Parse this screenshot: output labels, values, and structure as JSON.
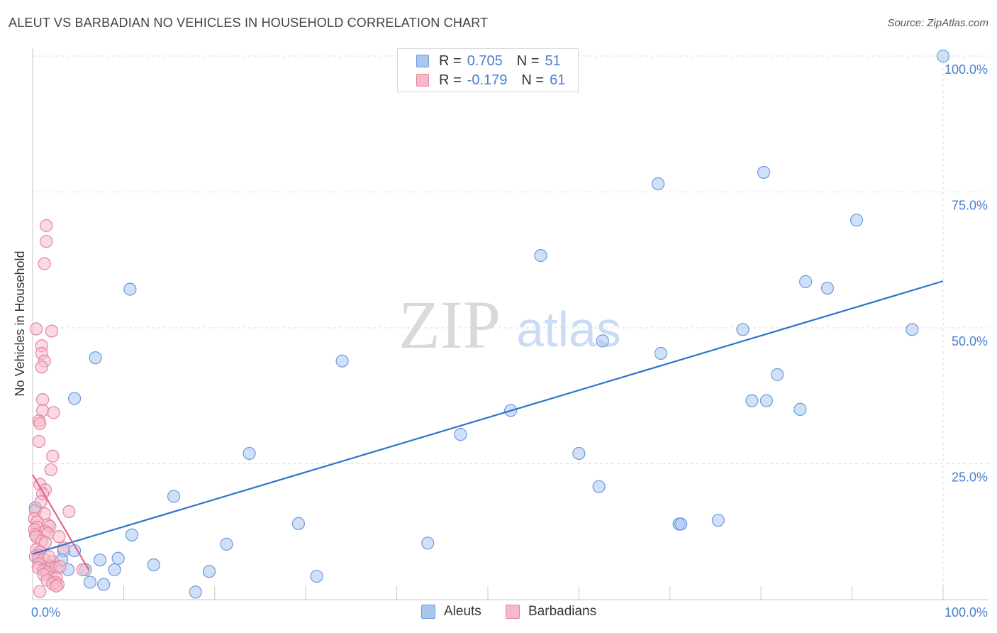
{
  "title": "ALEUT VS BARBADIAN NO VEHICLES IN HOUSEHOLD CORRELATION CHART",
  "source": "Source: ZipAtlas.com",
  "watermark": {
    "zip": "ZIP",
    "atlas": "atlas"
  },
  "legend": {
    "r_label": "R =",
    "n_label": "N =",
    "rows": [
      {
        "r": "0.705",
        "n": "51",
        "color": "#a9c6ef",
        "stroke": "#6a9ae0"
      },
      {
        "r": "-0.179",
        "n": "61",
        "color": "#f6b9cb",
        "stroke": "#e6839f"
      }
    ]
  },
  "bottom_legend": [
    {
      "label": "Aleuts",
      "color": "#a9c6ef",
      "stroke": "#6a9ae0"
    },
    {
      "label": "Barbadians",
      "color": "#f6b9cb",
      "stroke": "#e6839f"
    }
  ],
  "chart_data": {
    "type": "scatter",
    "title": "ALEUT VS BARBADIAN NO VEHICLES IN HOUSEHOLD CORRELATION CHART",
    "xlabel": "",
    "ylabel": "No Vehicles in Household",
    "xlim": [
      0,
      100
    ],
    "ylim": [
      0,
      100
    ],
    "x_tick_labels": [
      "0.0%",
      "100.0%"
    ],
    "y_tick_labels": [
      "25.0%",
      "50.0%",
      "75.0%",
      "100.0%"
    ],
    "y_ticks": [
      25,
      50,
      75,
      100
    ],
    "grid": true,
    "legend_position": "top-center",
    "series": [
      {
        "name": "Aleuts",
        "color": "#6a9ae0",
        "fill": "#a9c6ef",
        "trend": {
          "x": [
            0,
            100
          ],
          "y": [
            8.4,
            58.6
          ],
          "color": "#2f72cc"
        },
        "points": [
          [
            100,
            100
          ],
          [
            80.3,
            78.6
          ],
          [
            68.7,
            76.5
          ],
          [
            90.5,
            69.8
          ],
          [
            55.8,
            63.3
          ],
          [
            10.7,
            57.1
          ],
          [
            84.9,
            58.5
          ],
          [
            87.3,
            57.3
          ],
          [
            96.6,
            49.7
          ],
          [
            78.0,
            49.7
          ],
          [
            62.6,
            47.6
          ],
          [
            69.0,
            45.3
          ],
          [
            6.9,
            44.5
          ],
          [
            34.0,
            43.9
          ],
          [
            81.8,
            41.4
          ],
          [
            4.6,
            37.0
          ],
          [
            79.0,
            36.6
          ],
          [
            80.6,
            36.6
          ],
          [
            84.3,
            35.0
          ],
          [
            52.5,
            34.8
          ],
          [
            47.0,
            30.4
          ],
          [
            23.8,
            26.9
          ],
          [
            60.0,
            26.9
          ],
          [
            62.2,
            20.8
          ],
          [
            15.5,
            19.0
          ],
          [
            75.3,
            14.6
          ],
          [
            71.0,
            13.9
          ],
          [
            71.2,
            13.9
          ],
          [
            29.2,
            14.0
          ],
          [
            10.9,
            11.9
          ],
          [
            21.3,
            10.2
          ],
          [
            43.4,
            10.4
          ],
          [
            4.6,
            9.0
          ],
          [
            3.4,
            9.0
          ],
          [
            7.4,
            7.3
          ],
          [
            9.4,
            7.6
          ],
          [
            13.3,
            6.4
          ],
          [
            0.3,
            16.9
          ],
          [
            1.6,
            6.0
          ],
          [
            2.3,
            6.0
          ],
          [
            3.2,
            7.3
          ],
          [
            3.9,
            5.5
          ],
          [
            5.8,
            5.5
          ],
          [
            9.0,
            5.5
          ],
          [
            19.4,
            5.2
          ],
          [
            31.2,
            4.3
          ],
          [
            6.3,
            3.2
          ],
          [
            7.8,
            2.8
          ],
          [
            17.9,
            1.4
          ],
          [
            0.6,
            7.5
          ],
          [
            2.0,
            6.2
          ]
        ]
      },
      {
        "name": "Barbadians",
        "color": "#e6839f",
        "fill": "#f6b9cb",
        "trend": {
          "x": [
            0,
            6.2
          ],
          "y": [
            23.0,
            5.4
          ],
          "color": "#e3648c"
        },
        "points": [
          [
            1.5,
            68.8
          ],
          [
            1.5,
            65.9
          ],
          [
            1.3,
            61.8
          ],
          [
            0.4,
            49.8
          ],
          [
            2.1,
            49.4
          ],
          [
            1.0,
            46.7
          ],
          [
            1.0,
            45.3
          ],
          [
            1.3,
            43.9
          ],
          [
            1.0,
            42.8
          ],
          [
            1.1,
            36.8
          ],
          [
            1.1,
            34.8
          ],
          [
            2.3,
            34.4
          ],
          [
            0.7,
            32.9
          ],
          [
            0.8,
            32.4
          ],
          [
            0.7,
            29.1
          ],
          [
            2.2,
            26.4
          ],
          [
            2.0,
            23.9
          ],
          [
            0.8,
            21.2
          ],
          [
            1.4,
            20.2
          ],
          [
            1.1,
            19.5
          ],
          [
            4.0,
            16.2
          ],
          [
            0.3,
            16.4
          ],
          [
            1.3,
            15.8
          ],
          [
            0.2,
            14.9
          ],
          [
            0.5,
            14.3
          ],
          [
            1.7,
            13.8
          ],
          [
            1.9,
            13.5
          ],
          [
            0.5,
            13.3
          ],
          [
            0.2,
            12.9
          ],
          [
            1.4,
            12.5
          ],
          [
            1.7,
            12.2
          ],
          [
            0.3,
            12.0
          ],
          [
            0.4,
            11.6
          ],
          [
            2.9,
            11.6
          ],
          [
            1.0,
            10.8
          ],
          [
            1.4,
            10.5
          ],
          [
            3.4,
            9.5
          ],
          [
            0.4,
            9.2
          ],
          [
            0.8,
            8.8
          ],
          [
            0.6,
            8.2
          ],
          [
            0.3,
            7.9
          ],
          [
            1.2,
            7.5
          ],
          [
            2.2,
            7.0
          ],
          [
            0.7,
            6.6
          ],
          [
            1.9,
            6.2
          ],
          [
            0.6,
            5.9
          ],
          [
            2.6,
            5.8
          ],
          [
            5.5,
            5.5
          ],
          [
            1.2,
            5.4
          ],
          [
            1.6,
            5.0
          ],
          [
            1.2,
            4.6
          ],
          [
            2.6,
            4.0
          ],
          [
            1.6,
            3.6
          ],
          [
            2.5,
            3.2
          ],
          [
            2.2,
            2.9
          ],
          [
            2.8,
            2.8
          ],
          [
            2.6,
            2.5
          ],
          [
            0.8,
            1.5
          ],
          [
            3.0,
            6.1
          ],
          [
            1.8,
            7.9
          ],
          [
            0.9,
            18.0
          ]
        ]
      }
    ]
  }
}
